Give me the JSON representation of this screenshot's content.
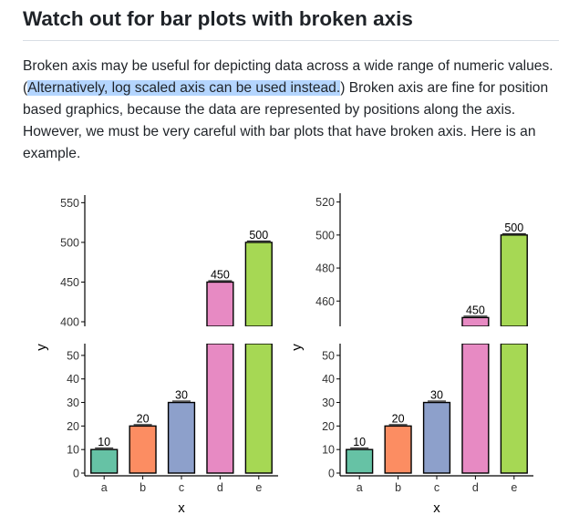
{
  "article": {
    "title": "Watch out for bar plots with broken axis",
    "paragraph_before": "Broken axis may be useful for depicting data across a wide range of numeric values. (",
    "paragraph_highlight": "Alternatively, log scaled axis can be used instead.",
    "paragraph_after": ") Broken axis are fine for position based graphics, because the data are represented by positions along the axis. However, we must be very careful with bar plots that have broken axis. Here is an example."
  },
  "colors": {
    "highlight": "#b4d5fe",
    "a": "#66c2a5",
    "b": "#fc8d62",
    "c": "#8da0cb",
    "d": "#e78ac3",
    "e": "#a6d854"
  },
  "chart_data": [
    {
      "type": "bar",
      "categories": [
        "a",
        "b",
        "c",
        "d",
        "e"
      ],
      "values": [
        10,
        20,
        30,
        450,
        500
      ],
      "xlabel": "x",
      "ylabel": "y",
      "broken_axis": true,
      "lower_ylim": [
        0,
        55
      ],
      "lower_yticks": [
        0,
        10,
        20,
        30,
        40,
        50
      ],
      "upper_ylim": [
        400,
        555
      ],
      "upper_yticks": [
        400,
        450,
        500,
        550
      ]
    },
    {
      "type": "bar",
      "categories": [
        "a",
        "b",
        "c",
        "d",
        "e"
      ],
      "values": [
        10,
        20,
        30,
        450,
        500
      ],
      "xlabel": "x",
      "ylabel": "y",
      "broken_axis": true,
      "lower_ylim": [
        0,
        55
      ],
      "lower_yticks": [
        0,
        10,
        20,
        30,
        40,
        50
      ],
      "upper_ylim": [
        448,
        522
      ],
      "upper_yticks": [
        460,
        480,
        500,
        520
      ]
    }
  ]
}
